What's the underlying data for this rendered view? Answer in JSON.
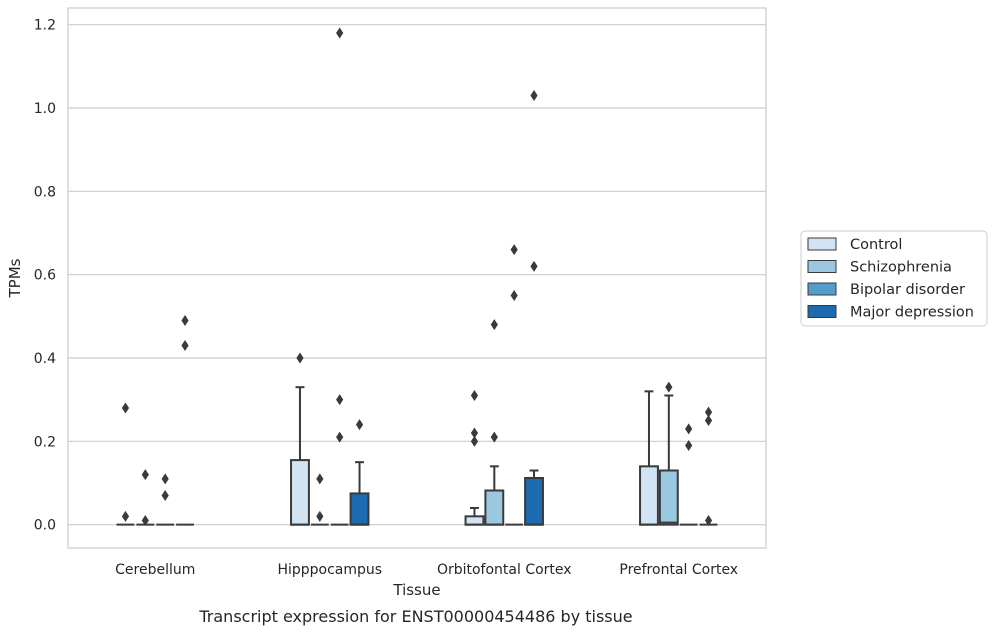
{
  "chart_data": {
    "type": "boxplot",
    "xlabel": "Tissue",
    "ylabel": "TPMs",
    "caption": "Transcript expression for ENST00000454486 by tissue",
    "ylim": [
      -0.056,
      1.24
    ],
    "yticks": [
      0.0,
      0.2,
      0.4,
      0.6,
      0.8,
      1.0,
      1.2
    ],
    "ytick_labels": [
      "0.0",
      "0.2",
      "0.4",
      "0.6",
      "0.8",
      "1.0",
      "1.2"
    ],
    "grid": true,
    "legend_position": "right",
    "categories": [
      "Cerebellum",
      "Hipppocampus",
      "Orbitofontal Cortex",
      "Prefrontal Cortex"
    ],
    "series": [
      {
        "name": "Control",
        "color": "#d2e3f3",
        "boxes": [
          {
            "q1": 0,
            "median": 0,
            "q3": 0,
            "whisker_low": 0,
            "whisker_high": 0,
            "outliers": [
              0.28,
              0.02
            ]
          },
          {
            "q1": 0,
            "median": 0,
            "q3": 0.155,
            "whisker_low": 0,
            "whisker_high": 0.33,
            "outliers": [
              0.4
            ]
          },
          {
            "q1": 0,
            "median": 0,
            "q3": 0.02,
            "whisker_low": 0,
            "whisker_high": 0.04,
            "outliers": [
              0.31,
              0.22,
              0.2
            ]
          },
          {
            "q1": 0,
            "median": 0,
            "q3": 0.14,
            "whisker_low": 0,
            "whisker_high": 0.32,
            "outliers": []
          }
        ]
      },
      {
        "name": "Schizophrenia",
        "color": "#9ac8e0",
        "boxes": [
          {
            "q1": 0,
            "median": 0,
            "q3": 0,
            "whisker_low": 0,
            "whisker_high": 0,
            "outliers": [
              0.12,
              0.01
            ]
          },
          {
            "q1": 0,
            "median": 0,
            "q3": 0,
            "whisker_low": 0,
            "whisker_high": 0,
            "outliers": [
              0.11,
              0.02
            ]
          },
          {
            "q1": 0,
            "median": 0,
            "q3": 0.082,
            "whisker_low": 0,
            "whisker_high": 0.14,
            "outliers": [
              0.48,
              0.21
            ]
          },
          {
            "q1": 0,
            "median": 0.005,
            "q3": 0.13,
            "whisker_low": 0,
            "whisker_high": 0.31,
            "outliers": [
              0.33
            ]
          }
        ]
      },
      {
        "name": "Bipolar disorder",
        "color": "#529dcc",
        "boxes": [
          {
            "q1": 0,
            "median": 0,
            "q3": 0,
            "whisker_low": 0,
            "whisker_high": 0,
            "outliers": [
              0.11,
              0.07
            ]
          },
          {
            "q1": 0,
            "median": 0,
            "q3": 0,
            "whisker_low": 0,
            "whisker_high": 0,
            "outliers": [
              1.18,
              0.3,
              0.21
            ]
          },
          {
            "q1": 0,
            "median": 0,
            "q3": 0,
            "whisker_low": 0,
            "whisker_high": 0,
            "outliers": [
              0.66,
              0.55
            ]
          },
          {
            "q1": 0,
            "median": 0,
            "q3": 0,
            "whisker_low": 0,
            "whisker_high": 0,
            "outliers": [
              0.23,
              0.19
            ]
          }
        ]
      },
      {
        "name": "Major depression",
        "color": "#1c6aaf",
        "boxes": [
          {
            "q1": 0,
            "median": 0,
            "q3": 0,
            "whisker_low": 0,
            "whisker_high": 0,
            "outliers": [
              0.49,
              0.43
            ]
          },
          {
            "q1": 0,
            "median": 0,
            "q3": 0.075,
            "whisker_low": 0,
            "whisker_high": 0.15,
            "outliers": [
              0.24
            ]
          },
          {
            "q1": 0,
            "median": 0,
            "q3": 0.112,
            "whisker_low": 0,
            "whisker_high": 0.13,
            "outliers": [
              1.03,
              0.62
            ]
          },
          {
            "q1": 0,
            "median": 0,
            "q3": 0,
            "whisker_low": 0,
            "whisker_high": 0,
            "outliers": [
              0.27,
              0.25,
              0.01
            ]
          }
        ]
      }
    ]
  }
}
